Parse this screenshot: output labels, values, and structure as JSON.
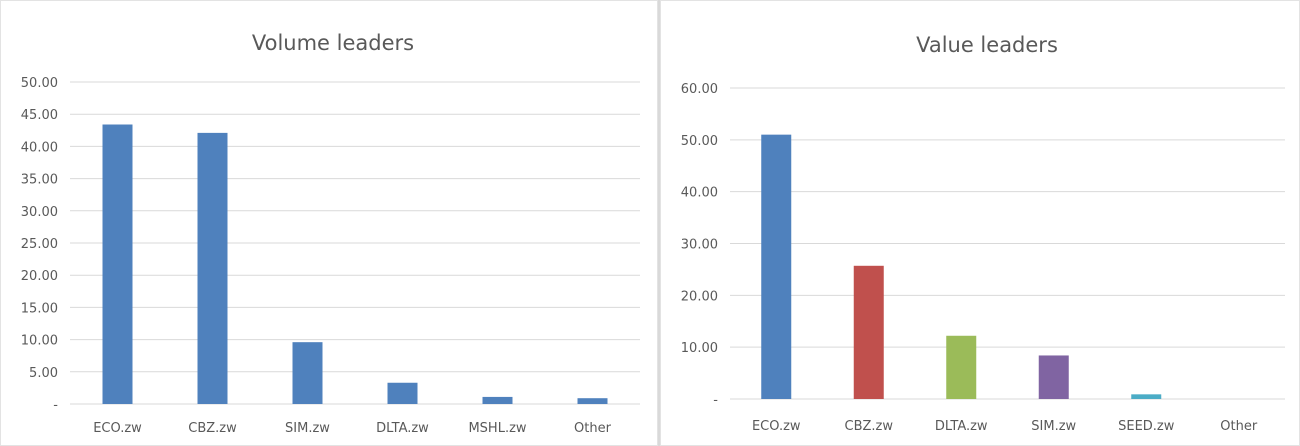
{
  "chart_data": [
    {
      "type": "bar",
      "title": "Volume leaders",
      "categories": [
        "ECO.zw",
        "CBZ.zw",
        "SIM.zw",
        "DLTA.zw",
        "MSHL.zw",
        "Other"
      ],
      "values": [
        43.4,
        42.1,
        9.6,
        3.3,
        1.1,
        0.9
      ],
      "ylim": [
        0,
        50
      ],
      "yticks": [
        0,
        5,
        10,
        15,
        20,
        25,
        30,
        35,
        40,
        45,
        50
      ],
      "ytick_labels": [
        "-",
        "5.00",
        "10.00",
        "15.00",
        "20.00",
        "25.00",
        "30.00",
        "35.00",
        "40.00",
        "45.00",
        "50.00"
      ],
      "colors": [
        "#4f81bd",
        "#4f81bd",
        "#4f81bd",
        "#4f81bd",
        "#4f81bd",
        "#4f81bd"
      ],
      "grid": true,
      "xlabel": "",
      "ylabel": ""
    },
    {
      "type": "bar",
      "title": "Value leaders",
      "categories": [
        "ECO.zw",
        "CBZ.zw",
        "DLTA.zw",
        "SIM.zw",
        "SEED.zw",
        "Other"
      ],
      "values": [
        51.0,
        25.7,
        12.2,
        8.4,
        0.9,
        0.0
      ],
      "ylim": [
        0,
        60
      ],
      "yticks": [
        0,
        10,
        20,
        30,
        40,
        50,
        60
      ],
      "ytick_labels": [
        "-",
        "10.00",
        "20.00",
        "30.00",
        "40.00",
        "50.00",
        "60.00"
      ],
      "colors": [
        "#4f81bd",
        "#c0504d",
        "#9bbb59",
        "#8064a2",
        "#4bacc6",
        "#f79646"
      ],
      "grid": true,
      "xlabel": "",
      "ylabel": ""
    }
  ]
}
